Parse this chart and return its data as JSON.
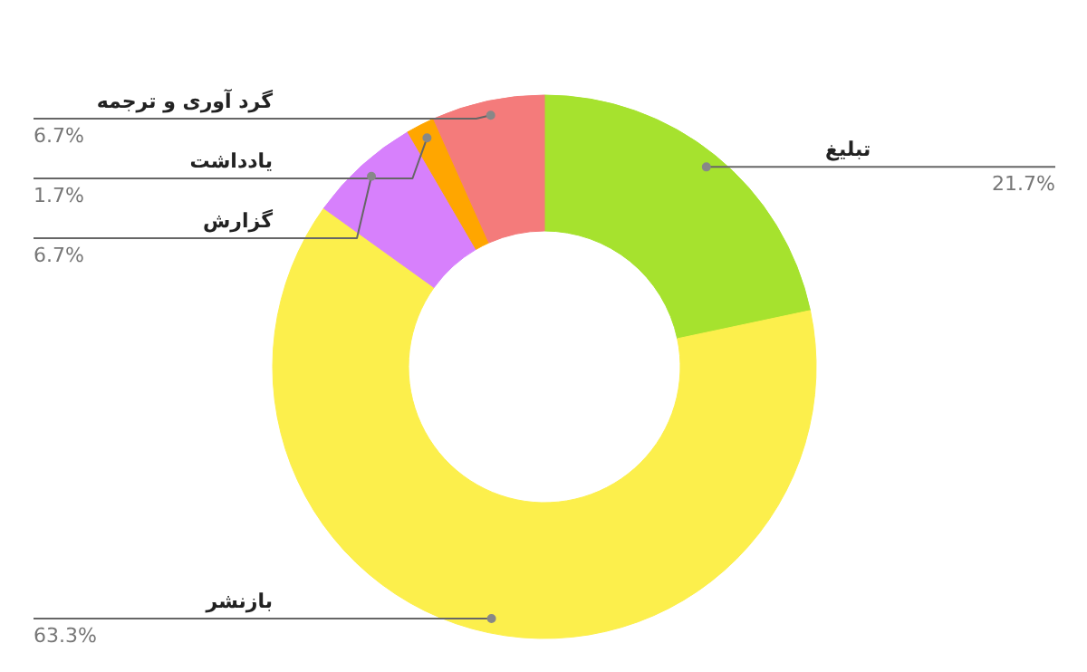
{
  "chart_data": {
    "type": "donut",
    "categories": [
      "تبلیغ",
      "بازنشر",
      "گزارش",
      "یادداشت",
      "گرد آوری و ترجمه"
    ],
    "values": [
      21.7,
      63.3,
      6.7,
      1.7,
      6.7
    ],
    "colors": [
      "#a6e22e",
      "#fcef4c",
      "#d780fc",
      "#ffa600",
      "#f47b7b"
    ],
    "value_labels": [
      "21.7%",
      "63.3%",
      "6.7%",
      "1.7%",
      "6.7%"
    ]
  }
}
